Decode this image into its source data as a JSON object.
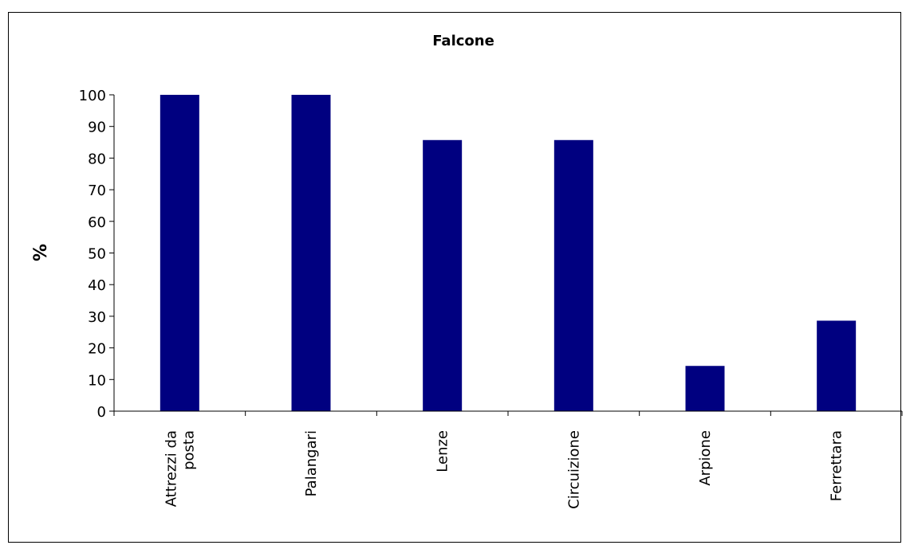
{
  "chart_data": {
    "type": "bar",
    "title": "Falcone",
    "ylabel": "%",
    "xlabel": "",
    "categories": [
      [
        "Attrezzi da",
        "posta"
      ],
      [
        "Palangari"
      ],
      [
        "Lenze"
      ],
      [
        "Circuizione"
      ],
      [
        "Arpione"
      ],
      [
        "Ferrettara"
      ]
    ],
    "values": [
      100,
      100,
      85.7,
      85.7,
      14.3,
      28.6
    ],
    "ylim": [
      0,
      100
    ],
    "yticks": [
      0,
      10,
      20,
      30,
      40,
      50,
      60,
      70,
      80,
      90,
      100
    ],
    "grid": false,
    "legend": "none",
    "bar_color": "#000080"
  }
}
